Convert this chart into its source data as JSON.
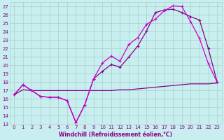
{
  "xlabel": "Windchill (Refroidissement éolien,°C)",
  "bg_color": "#c8eef0",
  "grid_color": "#aad4cc",
  "line_color_bright": "#cc00cc",
  "line_color_dark": "#880088",
  "xlim": [
    -0.5,
    23.5
  ],
  "ylim": [
    13,
    27.5
  ],
  "xticks": [
    0,
    1,
    2,
    3,
    4,
    5,
    6,
    7,
    8,
    9,
    10,
    11,
    12,
    13,
    14,
    15,
    16,
    17,
    18,
    19,
    20,
    21,
    22,
    23
  ],
  "yticks": [
    13,
    14,
    15,
    16,
    17,
    18,
    19,
    20,
    21,
    22,
    23,
    24,
    25,
    26,
    27
  ],
  "line1_x": [
    0,
    1,
    2,
    3,
    4,
    5,
    6,
    7,
    8,
    9,
    10,
    11,
    12,
    13,
    14,
    15,
    16,
    17,
    18,
    19,
    20,
    21,
    22,
    23
  ],
  "line1_y": [
    16.5,
    17.7,
    17.0,
    16.3,
    16.2,
    16.2,
    15.8,
    13.2,
    15.3,
    18.4,
    20.3,
    21.1,
    20.5,
    22.5,
    23.3,
    24.9,
    25.5,
    26.5,
    27.1,
    27.0,
    25.2,
    23.2,
    20.2,
    18.0
  ],
  "line2_x": [
    0,
    1,
    2,
    3,
    4,
    5,
    6,
    7,
    8,
    9,
    10,
    11,
    12,
    13,
    14,
    15,
    16,
    17,
    18,
    19,
    20,
    21,
    22,
    23
  ],
  "line2_y": [
    16.5,
    17.7,
    17.0,
    16.3,
    16.2,
    16.2,
    15.8,
    13.2,
    15.3,
    18.4,
    19.3,
    20.1,
    19.8,
    21.0,
    22.3,
    24.1,
    26.3,
    26.6,
    26.7,
    26.3,
    25.8,
    25.4,
    22.0,
    18.0
  ],
  "line3_x": [
    0,
    1,
    2,
    3,
    4,
    5,
    6,
    7,
    8,
    9,
    10,
    11,
    12,
    13,
    14,
    15,
    16,
    17,
    18,
    19,
    20,
    21,
    22,
    23
  ],
  "line3_y": [
    16.5,
    17.1,
    17.0,
    17.0,
    17.0,
    17.0,
    17.0,
    17.0,
    17.0,
    17.0,
    17.0,
    17.0,
    17.1,
    17.1,
    17.2,
    17.3,
    17.4,
    17.5,
    17.6,
    17.7,
    17.8,
    17.8,
    17.8,
    17.9
  ],
  "marker": "+",
  "markersize": 3.5,
  "markeredgewidth": 0.8,
  "lw": 0.9,
  "tick_fontsize": 5.0,
  "xlabel_fontsize": 5.5
}
